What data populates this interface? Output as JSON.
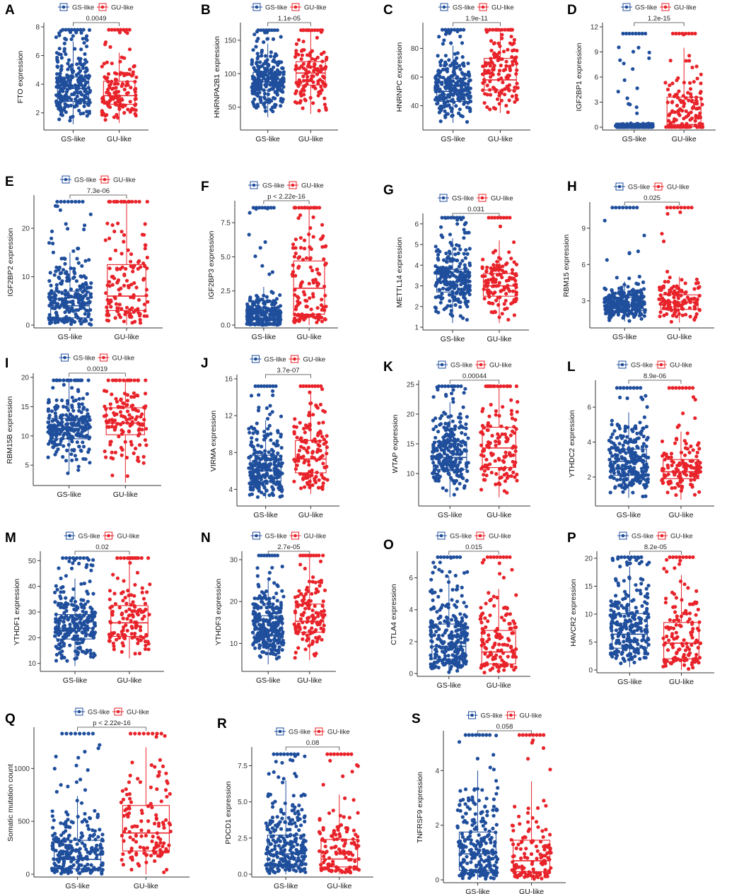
{
  "group_labels": [
    "GS-like",
    "GU-like"
  ],
  "colors": {
    "gs": "#1f4e9c",
    "gu": "#e8232a",
    "axis": "#333333"
  },
  "chart_data": [
    {
      "panel": "A",
      "type": "box",
      "ylabel": "FTO expression",
      "ticks": [
        2,
        4,
        6,
        8
      ],
      "ylim": [
        1,
        8
      ],
      "pvalue": "0.0049",
      "boxes": [
        {
          "group": "GS-like",
          "q1": 2.8,
          "median": 3.7,
          "q3": 4.5,
          "lower": 1.2,
          "upper": 7.0,
          "max": 7.8
        },
        {
          "group": "GU-like",
          "q1": 2.6,
          "median": 3.2,
          "q3": 4.2,
          "lower": 1.3,
          "upper": 6.2,
          "max": 7.8
        }
      ]
    },
    {
      "panel": "B",
      "type": "box",
      "ylabel": "HNRNPA2B1 expression",
      "ticks": [
        50,
        100,
        150
      ],
      "ylim": [
        20,
        170
      ],
      "pvalue": "1.1e-05",
      "boxes": [
        {
          "group": "GS-like",
          "q1": 75,
          "median": 88,
          "q3": 102,
          "lower": 35,
          "upper": 145,
          "max": 165
        },
        {
          "group": "GU-like",
          "q1": 83,
          "median": 101,
          "q3": 118,
          "lower": 40,
          "upper": 165,
          "max": 165
        }
      ]
    },
    {
      "panel": "C",
      "type": "box",
      "ylabel": "HNRNPC expression",
      "ticks": [
        40,
        60,
        80
      ],
      "ylim": [
        25,
        95
      ],
      "pvalue": "1.9e-11",
      "boxes": [
        {
          "group": "GS-like",
          "q1": 43,
          "median": 50,
          "q3": 59,
          "lower": 28,
          "upper": 82,
          "max": 93
        },
        {
          "group": "GU-like",
          "q1": 51,
          "median": 58,
          "q3": 73,
          "lower": 35,
          "upper": 93,
          "max": 93
        }
      ]
    },
    {
      "panel": "D",
      "type": "box",
      "ylabel": "IGF2BP1 expression",
      "ticks": [
        0,
        3,
        6,
        9,
        12
      ],
      "ylim": [
        0,
        12
      ],
      "pvalue": "1.2e-15",
      "boxes": [
        {
          "group": "GS-like",
          "q1": 0.02,
          "median": 0.08,
          "q3": 0.2,
          "lower": 0,
          "upper": 0.5,
          "max": 11.2
        },
        {
          "group": "GU-like",
          "q1": 0.05,
          "median": 0.3,
          "q3": 3.6,
          "lower": 0,
          "upper": 9.5,
          "max": 11.2
        }
      ]
    },
    {
      "panel": "E",
      "type": "box",
      "ylabel": "IGF2BP2 expression",
      "ticks": [
        0,
        10,
        20
      ],
      "ylim": [
        0,
        26
      ],
      "pvalue": "7.3e-06",
      "boxes": [
        {
          "group": "GS-like",
          "q1": 1.5,
          "median": 4,
          "q3": 7,
          "lower": 0,
          "upper": 15,
          "max": 25.5
        },
        {
          "group": "GU-like",
          "q1": 3,
          "median": 6,
          "q3": 12.5,
          "lower": 0,
          "upper": 25.5,
          "max": 25.5
        }
      ]
    },
    {
      "panel": "F",
      "type": "box",
      "ylabel": "IGF2BP3 expression",
      "ticks": [
        0,
        2.5,
        5,
        7.5
      ],
      "tick_labels": [
        "0.0",
        "2.5",
        "5.0",
        "7.5"
      ],
      "ylim": [
        0,
        8.8
      ],
      "pvalue": "p < 2.22e-16",
      "boxes": [
        {
          "group": "GS-like",
          "q1": 0.1,
          "median": 0.4,
          "q3": 1.2,
          "lower": 0,
          "upper": 2.8,
          "max": 8.6
        },
        {
          "group": "GU-like",
          "q1": 0.8,
          "median": 2.7,
          "q3": 4.7,
          "lower": 0,
          "upper": 8.6,
          "max": 8.6
        }
      ]
    },
    {
      "panel": "G",
      "type": "box",
      "ylabel": "METTL14 expression",
      "ticks": [
        1,
        2,
        3,
        4,
        5,
        6
      ],
      "ylim": [
        1,
        6.3
      ],
      "pvalue": "0.031",
      "boxes": [
        {
          "group": "GS-like",
          "q1": 2.7,
          "median": 3.2,
          "q3": 3.8,
          "lower": 1.2,
          "upper": 5.3,
          "max": 6.3
        },
        {
          "group": "GU-like",
          "q1": 2.5,
          "median": 3.0,
          "q3": 3.6,
          "lower": 1.2,
          "upper": 5.2,
          "max": 6.3
        }
      ]
    },
    {
      "panel": "H",
      "type": "box",
      "ylabel": "RBM15 expression",
      "ticks": [
        3,
        6,
        9
      ],
      "ylim": [
        1,
        10.8
      ],
      "pvalue": "0.025",
      "boxes": [
        {
          "group": "GS-like",
          "q1": 2.2,
          "median": 2.7,
          "q3": 3.3,
          "lower": 1.3,
          "upper": 4.6,
          "max": 10.7
        },
        {
          "group": "GU-like",
          "q1": 2.3,
          "median": 2.9,
          "q3": 3.5,
          "lower": 1.2,
          "upper": 5.0,
          "max": 10.7
        }
      ]
    },
    {
      "panel": "I",
      "type": "box",
      "ylabel": "RBM15B expression",
      "ticks": [
        5,
        10,
        15,
        20
      ],
      "ylim": [
        2,
        20
      ],
      "pvalue": "0.0019",
      "boxes": [
        {
          "group": "GS-like",
          "q1": 9.5,
          "median": 11.3,
          "q3": 13.0,
          "lower": 3.5,
          "upper": 19.5,
          "max": 19.5
        },
        {
          "group": "GU-like",
          "q1": 10.2,
          "median": 12.2,
          "q3": 14.8,
          "lower": 2.0,
          "upper": 19.5,
          "max": 19.5
        }
      ]
    },
    {
      "panel": "J",
      "type": "box",
      "ylabel": "VIRMA expression",
      "ticks": [
        4,
        8,
        12,
        16
      ],
      "ylim": [
        2.5,
        16
      ],
      "pvalue": "3.7e-07",
      "boxes": [
        {
          "group": "GS-like",
          "q1": 4.9,
          "median": 6.0,
          "q3": 7.7,
          "lower": 3.0,
          "upper": 11.5,
          "max": 15.2
        },
        {
          "group": "GU-like",
          "q1": 5.8,
          "median": 7.3,
          "q3": 9.3,
          "lower": 3.5,
          "upper": 14.5,
          "max": 15.2
        }
      ]
    },
    {
      "panel": "K",
      "type": "box",
      "ylabel": "WTAP expression",
      "ticks": [
        10,
        15,
        20,
        25
      ],
      "ylim": [
        5,
        25
      ],
      "pvalue": "0.00044",
      "boxes": [
        {
          "group": "GS-like",
          "q1": 10.7,
          "median": 12.7,
          "q3": 15.4,
          "lower": 6.0,
          "upper": 22.0,
          "max": 24.7
        },
        {
          "group": "GU-like",
          "q1": 11.0,
          "median": 14.3,
          "q3": 17.8,
          "lower": 6.0,
          "upper": 24.7,
          "max": 24.7
        }
      ]
    },
    {
      "panel": "L",
      "type": "box",
      "ylabel": "YTHDC2 expression",
      "ticks": [
        2,
        4,
        6
      ],
      "ylim": [
        0.5,
        7.3
      ],
      "pvalue": "8.9e-06",
      "boxes": [
        {
          "group": "GS-like",
          "q1": 2.1,
          "median": 2.9,
          "q3": 3.6,
          "lower": 0.8,
          "upper": 5.7,
          "max": 7.1
        },
        {
          "group": "GU-like",
          "q1": 1.9,
          "median": 2.3,
          "q3": 3.0,
          "lower": 0.7,
          "upper": 4.6,
          "max": 7.1
        }
      ]
    },
    {
      "panel": "M",
      "type": "box",
      "ylabel": "YTHDF1 expression",
      "ticks": [
        10,
        20,
        30,
        40,
        50
      ],
      "ylim": [
        8,
        52
      ],
      "pvalue": "0.02",
      "boxes": [
        {
          "group": "GS-like",
          "q1": 19.5,
          "median": 23.7,
          "q3": 29.0,
          "lower": 9.0,
          "upper": 43.0,
          "max": 51.0
        },
        {
          "group": "GU-like",
          "q1": 20.5,
          "median": 25.8,
          "q3": 32.5,
          "lower": 12.0,
          "upper": 51.0,
          "max": 51.0
        }
      ]
    },
    {
      "panel": "N",
      "type": "box",
      "ylabel": "YTHDF3 expression",
      "ticks": [
        10,
        20,
        30
      ],
      "ylim": [
        4,
        31
      ],
      "pvalue": "2.7e-05",
      "boxes": [
        {
          "group": "GS-like",
          "q1": 10.8,
          "median": 13.2,
          "q3": 16.6,
          "lower": 5.0,
          "upper": 25.0,
          "max": 31.0
        },
        {
          "group": "GU-like",
          "q1": 12.7,
          "median": 15.3,
          "q3": 19.4,
          "lower": 6.0,
          "upper": 31.0,
          "max": 31.0
        }
      ]
    },
    {
      "panel": "O",
      "type": "box",
      "ylabel": "CTLA4 expression",
      "ticks": [
        0,
        2,
        4,
        6
      ],
      "ylim": [
        0,
        7.4
      ],
      "pvalue": "0.015",
      "boxes": [
        {
          "group": "GS-like",
          "q1": 0.9,
          "median": 1.7,
          "q3": 3.1,
          "lower": 0,
          "upper": 6.1,
          "max": 7.3
        },
        {
          "group": "GU-like",
          "q1": 0.6,
          "median": 1.35,
          "q3": 2.7,
          "lower": 0,
          "upper": 5.3,
          "max": 7.3
        }
      ]
    },
    {
      "panel": "P",
      "type": "box",
      "ylabel": "HAVCR2 expression",
      "ticks": [
        0,
        5,
        10,
        15,
        20
      ],
      "ylim": [
        0,
        20.5
      ],
      "pvalue": "8.2e-05",
      "boxes": [
        {
          "group": "GS-like",
          "q1": 3.9,
          "median": 6.4,
          "q3": 10.1,
          "lower": 0.5,
          "upper": 18.5,
          "max": 20.2
        },
        {
          "group": "GU-like",
          "q1": 2.0,
          "median": 4.8,
          "q3": 8.5,
          "lower": 0,
          "upper": 17.0,
          "max": 20.2
        }
      ]
    },
    {
      "panel": "Q",
      "type": "box",
      "ylabel": "Somatic mutation count",
      "ticks": [
        0,
        500,
        1000
      ],
      "ylim": [
        0,
        1350
      ],
      "pvalue": "p < 2.22e-16",
      "boxes": [
        {
          "group": "GS-like",
          "q1": 50,
          "median": 140,
          "q3": 320,
          "lower": 0,
          "upper": 740,
          "max": 1330
        },
        {
          "group": "GU-like",
          "q1": 220,
          "median": 390,
          "q3": 650,
          "lower": 0,
          "upper": 1200,
          "max": 1330
        }
      ]
    },
    {
      "panel": "R",
      "type": "box",
      "ylabel": "PDCD1 expression",
      "ticks": [
        0,
        2.5,
        5,
        7.5
      ],
      "tick_labels": [
        "0.0",
        "2.5",
        "5.0",
        "7.5"
      ],
      "ylim": [
        0,
        8.5
      ],
      "pvalue": "0.08",
      "boxes": [
        {
          "group": "GS-like",
          "q1": 0.7,
          "median": 1.4,
          "q3": 2.7,
          "lower": 0,
          "upper": 6.5,
          "max": 8.3
        },
        {
          "group": "GU-like",
          "q1": 0.5,
          "median": 1.05,
          "q3": 2.4,
          "lower": 0,
          "upper": 5.5,
          "max": 8.3
        }
      ]
    },
    {
      "panel": "S",
      "type": "box",
      "ylabel": "TNFRSF9 expression",
      "ticks": [
        0,
        2,
        4
      ],
      "ylim": [
        0,
        5.3
      ],
      "pvalue": "0.058",
      "boxes": [
        {
          "group": "GS-like",
          "q1": 0.35,
          "median": 0.95,
          "q3": 1.75,
          "lower": 0,
          "upper": 4.0,
          "max": 5.3
        },
        {
          "group": "GU-like",
          "q1": 0.3,
          "median": 0.7,
          "q3": 1.45,
          "lower": 0,
          "upper": 3.6,
          "max": 5.3
        }
      ]
    }
  ]
}
